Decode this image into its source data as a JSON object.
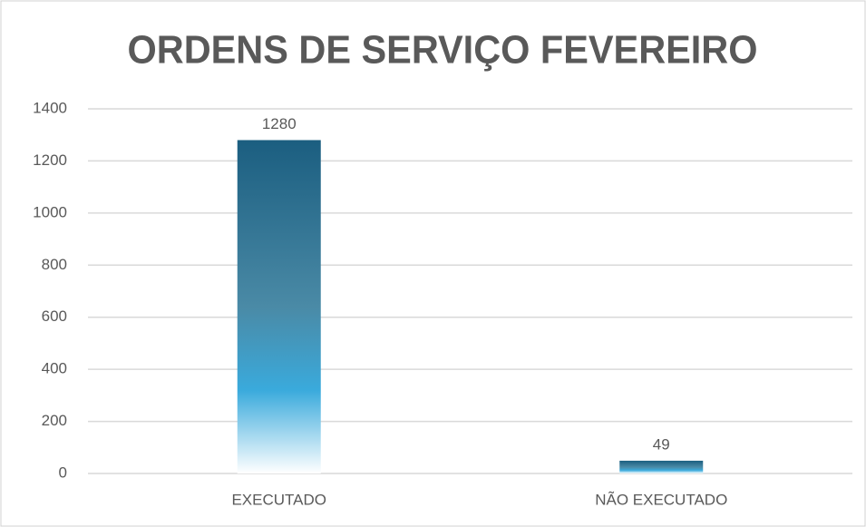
{
  "chart_data": {
    "type": "bar",
    "title": "ORDENS DE SERVIÇO FEVEREIRO",
    "categories": [
      "EXECUTADO",
      "NÃO EXECUTADO"
    ],
    "values": [
      1280,
      49
    ],
    "color": "#1b5e80",
    "ylim": [
      0,
      1400
    ],
    "yticks": [
      0,
      200,
      400,
      600,
      800,
      1000,
      1200,
      1400
    ],
    "grid": true
  }
}
